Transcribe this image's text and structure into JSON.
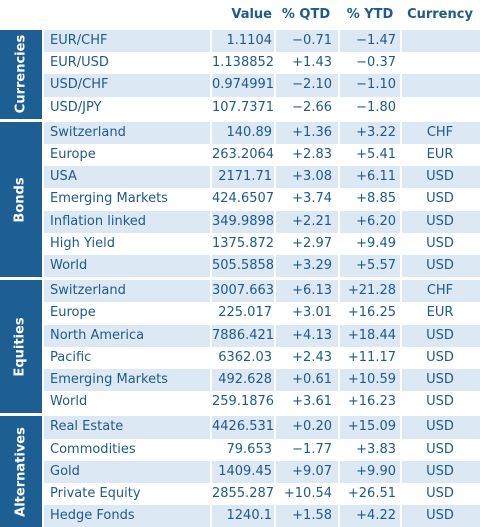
{
  "header": [
    "Value",
    "% QTD",
    "% YTD",
    "Currency"
  ],
  "groups": [
    {
      "label": "Currencies",
      "rows": [
        [
          "EUR/CHF",
          "1.1104",
          "−0.71",
          "−1.47"
        ],
        [
          "EUR/USD",
          "1.138852",
          "+1.43",
          "−0.37"
        ],
        [
          "USD/CHF",
          "0.974991",
          "−2.10",
          "−1.10"
        ],
        [
          "USD/JPY",
          "107.7371",
          "−2.66",
          "−1.80"
        ]
      ]
    },
    {
      "label": "Bonds",
      "rows": [
        [
          "Switzerland",
          "140.89",
          "+1.36",
          "+3.22",
          "CHF"
        ],
        [
          "Europe",
          "263.2064",
          "+2.83",
          "+5.41",
          "EUR"
        ],
        [
          "USA",
          "2171.71",
          "+3.08",
          "+6.11",
          "USD"
        ],
        [
          "Emerging Markets",
          "424.6507",
          "+3.74",
          "+8.85",
          "USD"
        ],
        [
          "Inflation linked",
          "349.9898",
          "+2.21",
          "+6.20",
          "USD"
        ],
        [
          "High Yield",
          "1375.872",
          "+2.97",
          "+9.49",
          "USD"
        ],
        [
          "World",
          "505.5858",
          "+3.29",
          "+5.57",
          "USD"
        ]
      ]
    },
    {
      "label": "Equities",
      "rows": [
        [
          "Switzerland",
          "3007.663",
          "+6.13",
          "+21.28",
          "CHF"
        ],
        [
          "Europe",
          "225.017",
          "+3.01",
          "+16.25",
          "EUR"
        ],
        [
          "North America",
          "7886.421",
          "+4.13",
          "+18.44",
          "USD"
        ],
        [
          "Pacific",
          "6362.03",
          "+2.43",
          "+11.17",
          "USD"
        ],
        [
          "Emerging Markets",
          "492.628",
          "+0.61",
          "+10.59",
          "USD"
        ],
        [
          "World",
          "259.1876",
          "+3.61",
          "+16.23",
          "USD"
        ]
      ]
    },
    {
      "label": "Alternatives",
      "rows": [
        [
          "Real Estate",
          "4426.531",
          "+0.20",
          "+15.09",
          "USD"
        ],
        [
          "Commodities",
          "79.653",
          "−1.77",
          "+3.83",
          "USD"
        ],
        [
          "Gold",
          "1409.45",
          "+9.07",
          "+9.90",
          "USD"
        ],
        [
          "Private Equity",
          "2855.287",
          "+10.54",
          "+26.51",
          "USD"
        ],
        [
          "Hedge Fonds",
          "1240.1",
          "+1.58",
          "+4.22",
          "USD"
        ]
      ]
    }
  ]
}
